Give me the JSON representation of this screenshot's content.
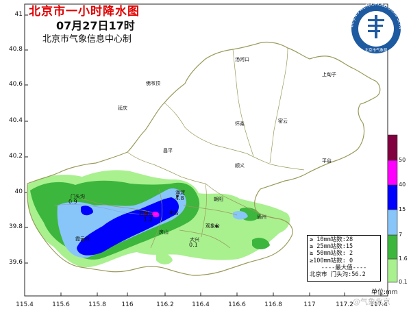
{
  "header": {
    "title": "北京市一小时降水图",
    "datetime": "07月27日17时",
    "organization": "北京市气象信息中心制"
  },
  "axes": {
    "y_ticks": [
      "41",
      "40.8",
      "40.6",
      "40.4",
      "40.2",
      "40",
      "39.8",
      "39.6"
    ],
    "x_ticks": [
      "115.4",
      "115.6",
      "115.8",
      "116",
      "116.2",
      "116.4",
      "116.6",
      "116.8",
      "117",
      "117.2",
      "117.4"
    ]
  },
  "districts": [
    {
      "name": "延庆"
    },
    {
      "name": "怀柔"
    },
    {
      "name": "密云"
    },
    {
      "name": "平谷"
    },
    {
      "name": "昌平"
    },
    {
      "name": "顺义"
    },
    {
      "name": "海淀"
    },
    {
      "name": "朝阳"
    },
    {
      "name": "门头沟"
    },
    {
      "name": "石景山"
    },
    {
      "name": "丰台"
    },
    {
      "name": "通州"
    },
    {
      "name": "房山"
    },
    {
      "name": "大兴"
    }
  ],
  "towns": [
    {
      "name": "汤河口"
    },
    {
      "name": "上甸子"
    },
    {
      "name": "佛爷顶"
    },
    {
      "name": "霞云岭"
    },
    {
      "name": "观象台"
    }
  ],
  "point_values": [
    {
      "value": "0.9"
    },
    {
      "value": "4.8"
    },
    {
      "value": "1.2"
    },
    {
      "value": "0.1"
    }
  ],
  "stats": {
    "line1": "≥ 10mm站数:28",
    "line2": "≥ 25mm站数:15",
    "line3": "≥ 50mm站数: 2",
    "line4": "≥100mm站数: 0",
    "max_label": "----最大值----",
    "max_station": "北京市 门头沟:56.2"
  },
  "legend": {
    "unit_label": "单位:mm",
    "thresholds": [
      "0.1",
      "1.6",
      "7",
      "15",
      "40",
      "50"
    ],
    "colors": [
      "#a9f08f",
      "#3cb63c",
      "#88c6fa",
      "#0000fe",
      "#ff00fe",
      "#800040"
    ]
  },
  "logo": {
    "ring_text": "BEIJING METEOROLOGICAL SERVICE",
    "inner_text": "北京市气象局"
  },
  "credit": "@气象北京",
  "colors": {
    "title": "#e00000",
    "boundary": "#9a9a5a",
    "rain_light": "#a9f08f",
    "rain_green": "#3cb63c",
    "rain_sky": "#88c6fa",
    "rain_blue": "#0000fe",
    "rain_magenta": "#ff00fe",
    "logo_blue": "#1e5aa0"
  }
}
